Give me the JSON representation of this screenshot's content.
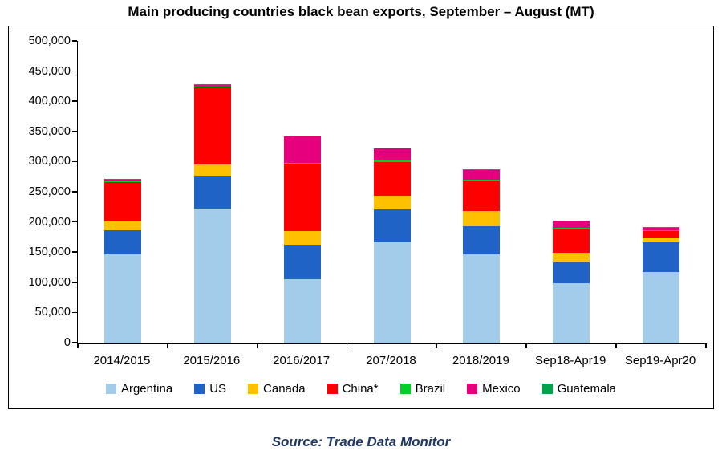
{
  "source": "Source: Trade Data Monitor",
  "chart_data": {
    "type": "bar",
    "subtype": "stacked",
    "title": "Main producing countries black bean exports, September – August (MT)",
    "xlabel": "",
    "ylabel": "",
    "ylim": [
      0,
      500000
    ],
    "ytick_step": 50000,
    "grid": false,
    "legend_position": "bottom",
    "categories": [
      "2014/2015",
      "2015/2016",
      "2016/2017",
      "207/2018",
      "2018/2019",
      "Sep18-Apr19",
      "Sep19-Apr20"
    ],
    "series": [
      {
        "name": "Argentina",
        "color": "#A3CCEA",
        "values": [
          148000,
          224000,
          106000,
          168000,
          147000,
          100000,
          118000
        ]
      },
      {
        "name": "US",
        "color": "#2063C6",
        "values": [
          40000,
          54000,
          57000,
          54000,
          47000,
          35000,
          50000
        ]
      },
      {
        "name": "Canada",
        "color": "#FFC000",
        "values": [
          14000,
          18000,
          23000,
          23000,
          26000,
          15000,
          8000
        ]
      },
      {
        "name": "China*",
        "color": "#FF0000",
        "values": [
          65000,
          128000,
          112000,
          55000,
          50000,
          40000,
          10000
        ]
      },
      {
        "name": "Brazil",
        "color": "#00D028",
        "values": [
          1000,
          1000,
          1000,
          4000,
          1000,
          1000,
          2000
        ]
      },
      {
        "name": "Mexico",
        "color": "#E6007E",
        "values": [
          3000,
          4000,
          44000,
          19000,
          17000,
          13000,
          3000
        ]
      },
      {
        "name": "Guatemala",
        "color": "#00A44A",
        "values": [
          2000,
          1000,
          0,
          0,
          1000,
          0,
          2000
        ]
      }
    ]
  }
}
